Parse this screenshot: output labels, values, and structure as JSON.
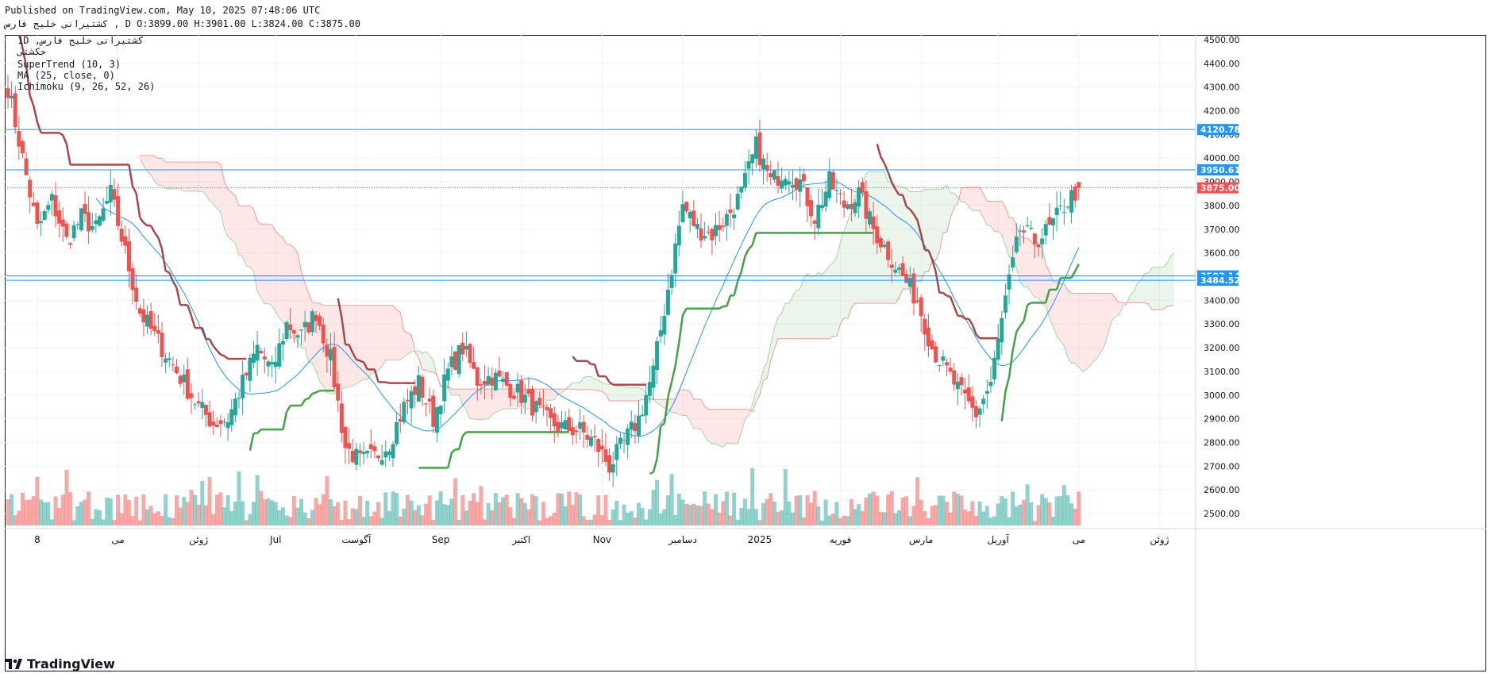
{
  "header": {
    "published": "Published on TradingView.com, May 10, 2025 07:48:06 UTC",
    "symbol_line": "کشتیرانی خلیج فارس , D O:3899.00 H:3901.00 L:3824.00 C:3875.00"
  },
  "legend": {
    "line1": "1D ,کشتیرانی خلیج فارس",
    "line2": "حکشتی",
    "supertrend": "SuperTrend (10, 3)",
    "ma": "MA (25, close, 0)",
    "ichimoku": "Ichimoku (9, 26, 52, 26)"
  },
  "brand": {
    "name": "TradingView"
  },
  "colors": {
    "up": "#26a69a",
    "down": "#ef5350",
    "supertrend_up": "#43a047",
    "supertrend_down": "#a5484a",
    "ma": "#2196f3",
    "hline": "#2196f3",
    "last_price": "#ef5350",
    "cloud_bull": "rgba(67,160,71,0.10)",
    "cloud_bear": "rgba(244,67,54,0.12)"
  },
  "chart_data": {
    "type": "candlestick",
    "timeframe": "1D",
    "y_axis": {
      "side": "right",
      "min": 2450,
      "max": 4520,
      "ticks": [
        2500,
        2600,
        2700,
        2800,
        2900,
        3000,
        3100,
        3200,
        3300,
        3400,
        3500,
        3600,
        3700,
        3800,
        3900,
        4000,
        4100,
        4200,
        4300,
        4400,
        4500
      ]
    },
    "x_axis": {
      "labels": [
        {
          "t": 8,
          "text": "8"
        },
        {
          "t": 30,
          "text": "می"
        },
        {
          "t": 52,
          "text": "ژوئن"
        },
        {
          "t": 73,
          "text": "Jul"
        },
        {
          "t": 95,
          "text": "آگوست"
        },
        {
          "t": 118,
          "text": "Sep"
        },
        {
          "t": 140,
          "text": "اکتبر"
        },
        {
          "t": 162,
          "text": "Nov"
        },
        {
          "t": 184,
          "text": "دسامبر"
        },
        {
          "t": 205,
          "text": "2025"
        },
        {
          "t": 227,
          "text": "فوریه"
        },
        {
          "t": 249,
          "text": "مارس"
        },
        {
          "t": 270,
          "text": "آوریل"
        },
        {
          "t": 292,
          "text": "می"
        },
        {
          "t": 314,
          "text": "ژوئن"
        }
      ],
      "t_max": 323
    },
    "hlines": [
      {
        "price": 4120.78,
        "label": "4120.78"
      },
      {
        "price": 3950.61,
        "label": "3950.61"
      },
      {
        "price": 3503.14,
        "label": "3503.14"
      },
      {
        "price": 3484.52,
        "label": "3484.52"
      }
    ],
    "last_price": {
      "price": 3875.0,
      "label": "3875.00"
    },
    "last_ohlc": {
      "open": 3899.0,
      "high": 3901.0,
      "low": 3824.0,
      "close": 3875.0
    },
    "close_anchors": [
      [
        0,
        4300
      ],
      [
        4,
        4000
      ],
      [
        8,
        3700
      ],
      [
        12,
        3820
      ],
      [
        16,
        3650
      ],
      [
        20,
        3750
      ],
      [
        24,
        3700
      ],
      [
        28,
        3850
      ],
      [
        32,
        3600
      ],
      [
        36,
        3350
      ],
      [
        40,
        3250
      ],
      [
        44,
        3150
      ],
      [
        48,
        3050
      ],
      [
        52,
        2950
      ],
      [
        56,
        2880
      ],
      [
        60,
        2900
      ],
      [
        64,
        3050
      ],
      [
        68,
        3200
      ],
      [
        72,
        3100
      ],
      [
        76,
        3300
      ],
      [
        80,
        3250
      ],
      [
        84,
        3350
      ],
      [
        88,
        3150
      ],
      [
        92,
        2780
      ],
      [
        96,
        2720
      ],
      [
        100,
        2740
      ],
      [
        104,
        2800
      ],
      [
        108,
        2950
      ],
      [
        112,
        3050
      ],
      [
        116,
        2900
      ],
      [
        120,
        3100
      ],
      [
        124,
        3200
      ],
      [
        128,
        3060
      ],
      [
        132,
        3080
      ],
      [
        136,
        3040
      ],
      [
        140,
        3000
      ],
      [
        144,
        2940
      ],
      [
        148,
        2880
      ],
      [
        152,
        2860
      ],
      [
        156,
        2850
      ],
      [
        160,
        2800
      ],
      [
        164,
        2700
      ],
      [
        168,
        2800
      ],
      [
        172,
        2900
      ],
      [
        176,
        3100
      ],
      [
        180,
        3450
      ],
      [
        184,
        3800
      ],
      [
        188,
        3700
      ],
      [
        192,
        3680
      ],
      [
        196,
        3750
      ],
      [
        200,
        3850
      ],
      [
        204,
        4050
      ],
      [
        208,
        3900
      ],
      [
        212,
        3950
      ],
      [
        216,
        3900
      ],
      [
        220,
        3750
      ],
      [
        224,
        3900
      ],
      [
        228,
        3800
      ],
      [
        232,
        3850
      ],
      [
        236,
        3700
      ],
      [
        240,
        3600
      ],
      [
        244,
        3500
      ],
      [
        248,
        3400
      ],
      [
        252,
        3200
      ],
      [
        256,
        3100
      ],
      [
        260,
        3000
      ],
      [
        264,
        2920
      ],
      [
        268,
        3050
      ],
      [
        272,
        3400
      ],
      [
        276,
        3700
      ],
      [
        280,
        3650
      ],
      [
        284,
        3700
      ],
      [
        288,
        3800
      ],
      [
        292,
        3875
      ]
    ],
    "volume_axis_max": 1.0
  }
}
